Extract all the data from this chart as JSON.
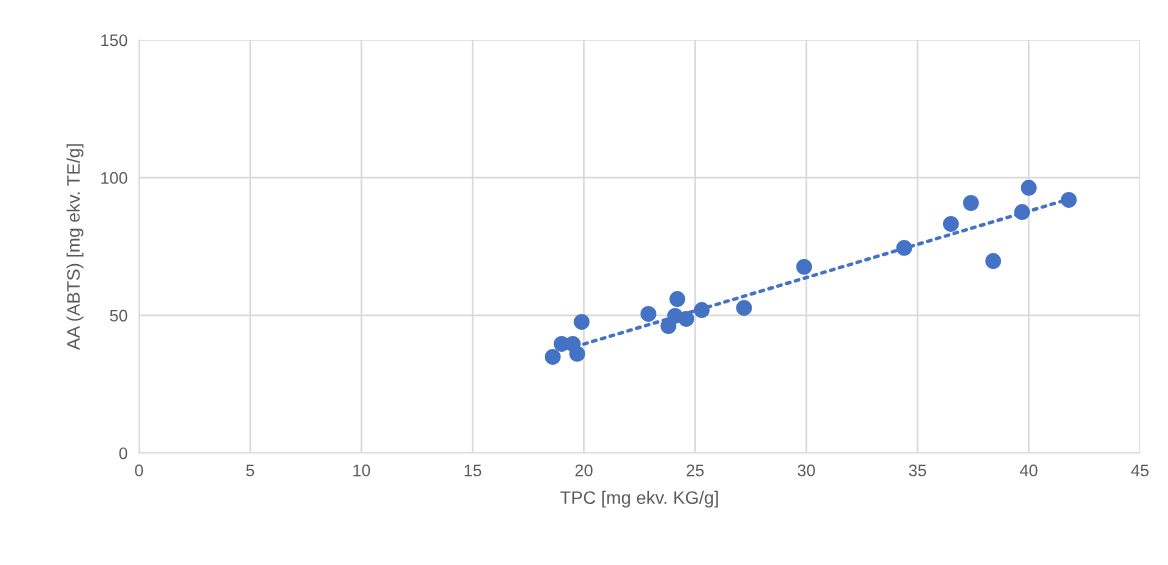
{
  "chart_data": {
    "type": "scatter",
    "xlabel": "TPC [mg ekv. KG/g]",
    "ylabel": "AA (ABTS) [mg ekv. TE/g]",
    "xlim": [
      0,
      45
    ],
    "xticks": [
      0,
      5,
      10,
      15,
      20,
      25,
      30,
      35,
      40,
      45
    ],
    "ylim": [
      0,
      150
    ],
    "yticks": [
      0,
      50,
      100,
      150
    ],
    "grid": true,
    "series": [
      {
        "color": "#4472c4",
        "marker": "circle",
        "x": [
          18.6,
          19.0,
          19.3,
          19.5,
          19.7,
          19.9,
          22.9,
          23.8,
          24.1,
          24.2,
          24.6,
          25.3,
          27.2,
          29.9,
          34.4,
          36.5,
          37.4,
          38.4,
          39.7,
          40.0,
          41.8
        ],
        "values": [
          34.9,
          39.6,
          null,
          39.6,
          36.0,
          47.6,
          50.5,
          46.1,
          49.8,
          55.9,
          48.7,
          51.9,
          52.7,
          67.6,
          74.5,
          83.2,
          90.8,
          69.7,
          87.5,
          96.3,
          91.9
        ]
      },
      {
        "type": "line",
        "color": "#4472c4",
        "line_style": "dotted",
        "marker": "none",
        "x": [
          19.6,
          41.8
        ],
        "values": [
          38.6,
          92.2
        ]
      }
    ]
  }
}
